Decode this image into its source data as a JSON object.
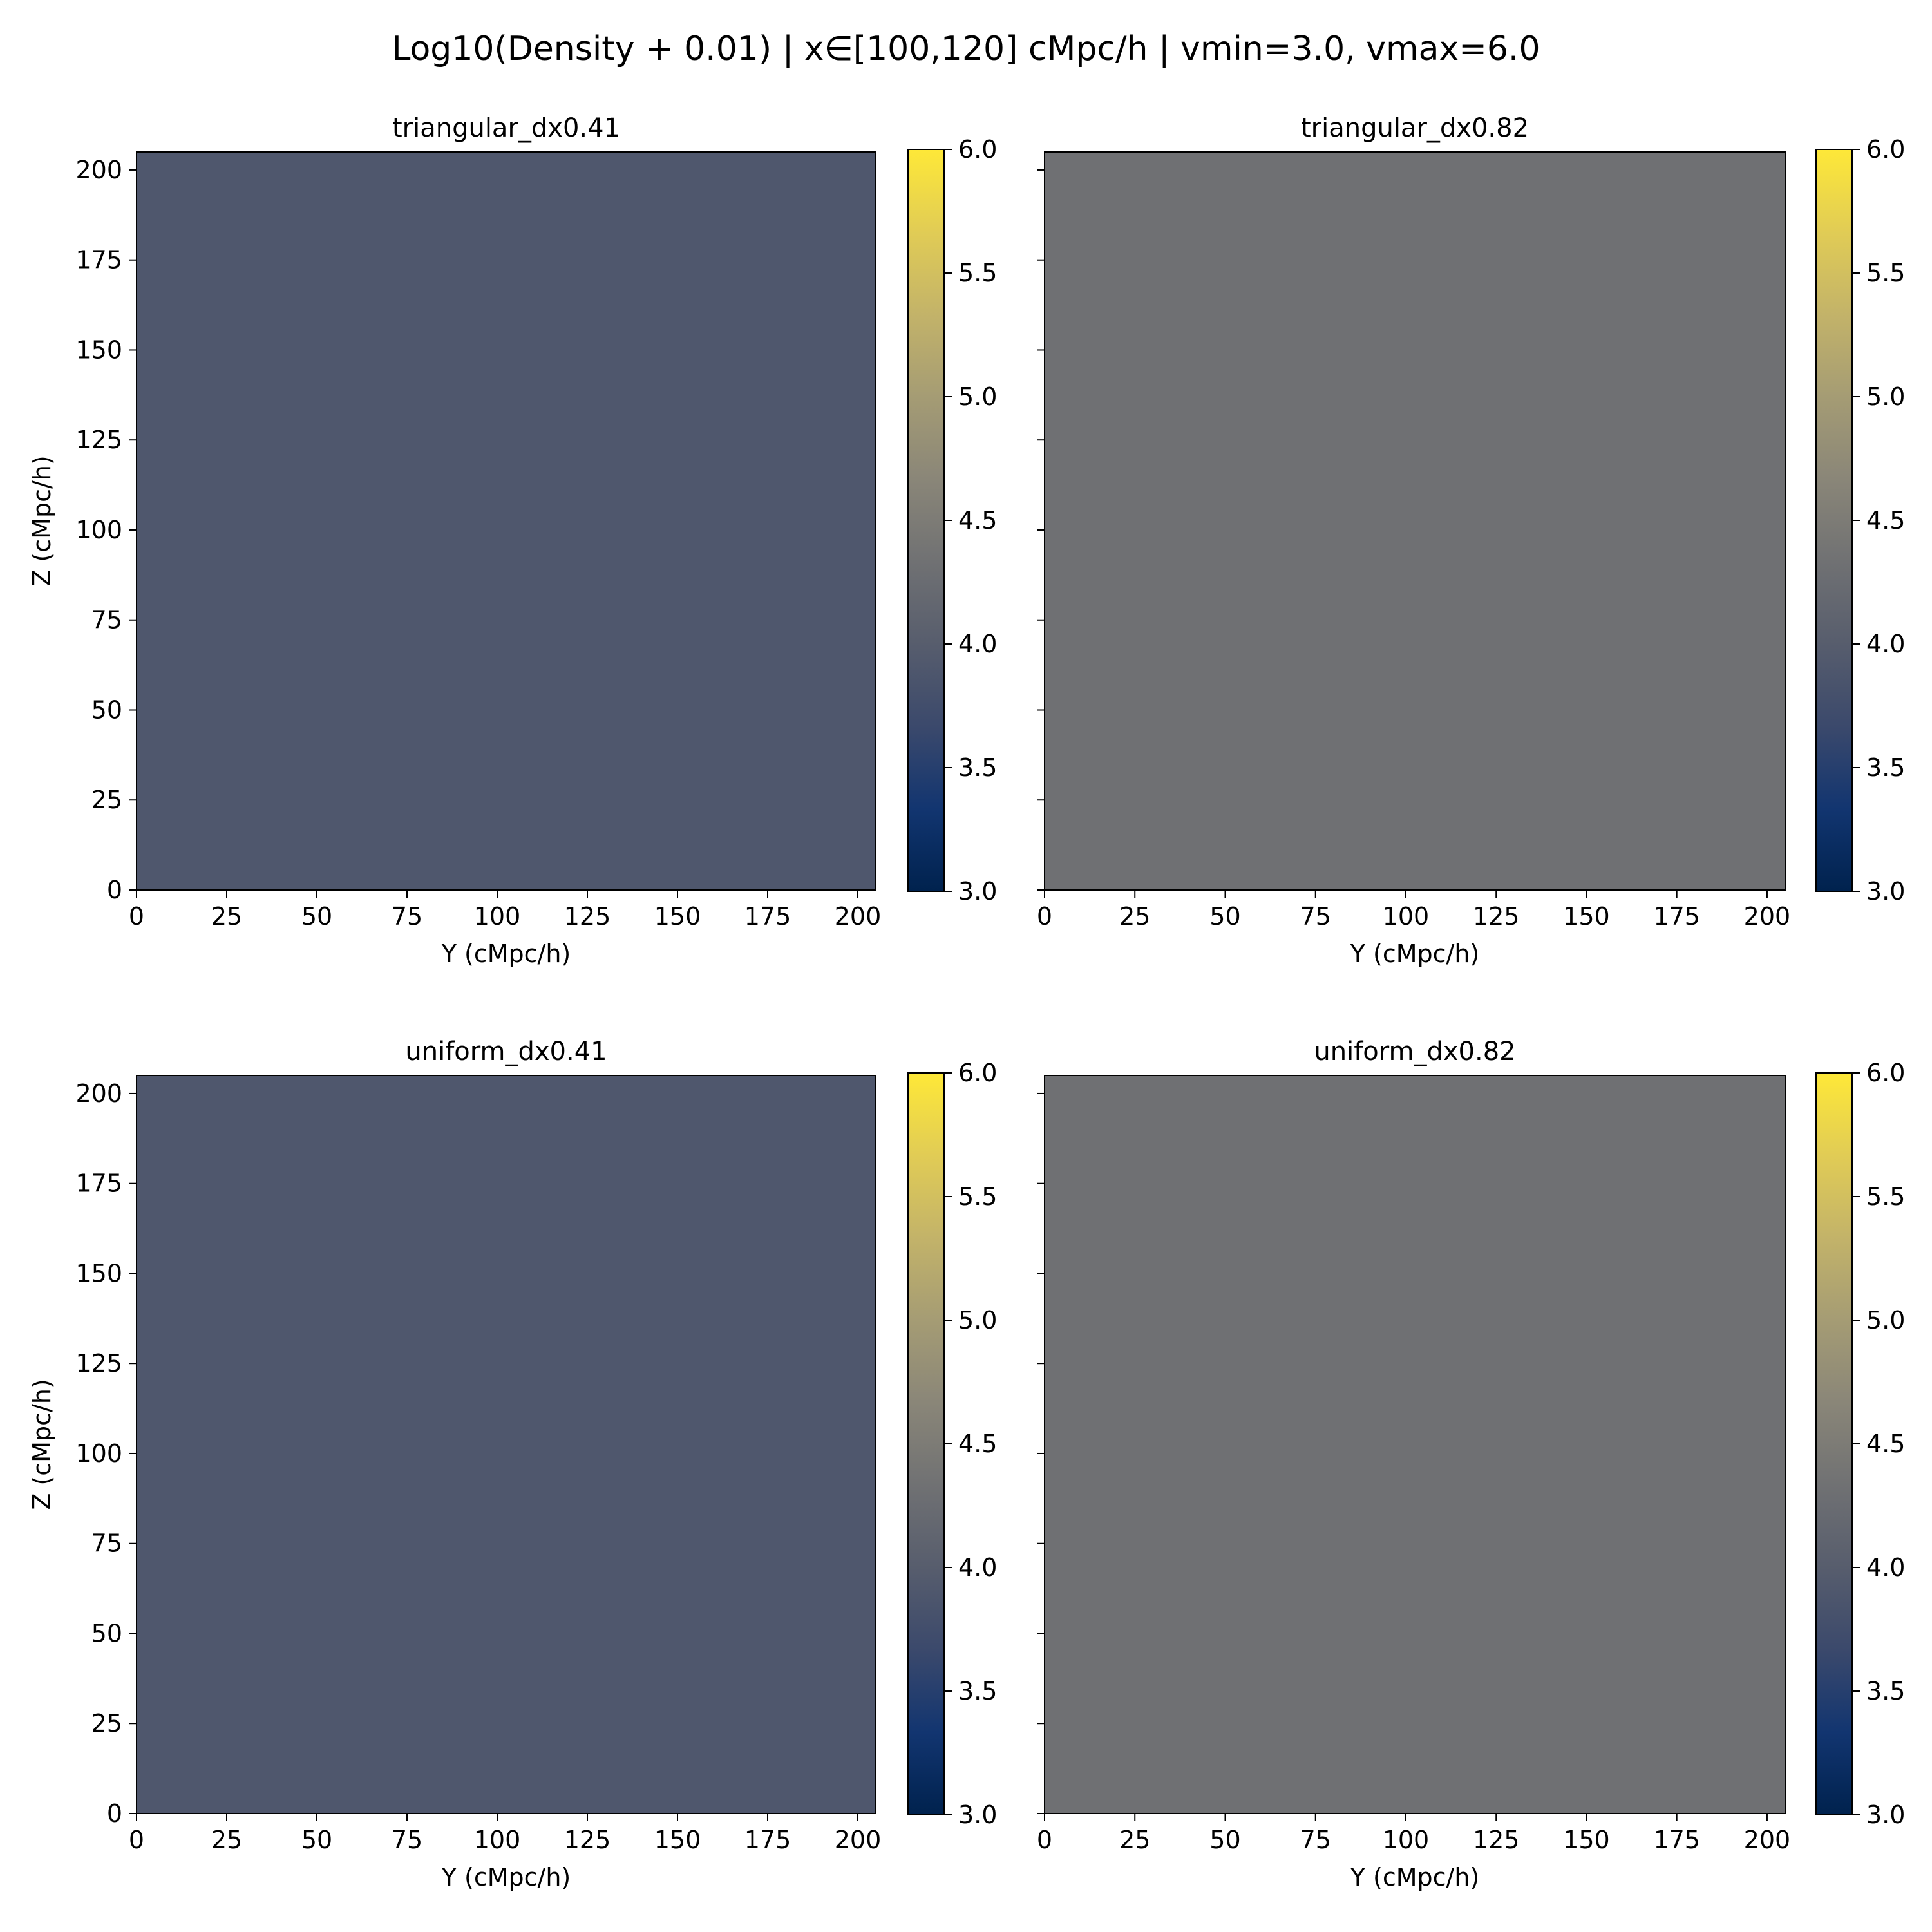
{
  "figure": {
    "suptitle": "Log10(Density + 0.01) | x∈[100,120] cMpc/h | vmin=3.0, vmax=6.0"
  },
  "colormap": {
    "name": "cividis",
    "stops": [
      "#00224e",
      "#123570",
      "#3b496c",
      "#575d6d",
      "#707173",
      "#8a8678",
      "#a59c74",
      "#c3b369",
      "#e1cc55",
      "#fee838"
    ]
  },
  "chart_data": [
    {
      "type": "heatmap",
      "title": "triangular_dx0.41",
      "xlabel": "Y (cMpc/h)",
      "ylabel": "Z (cMpc/h)",
      "xlim": [
        0,
        205
      ],
      "ylim": [
        0,
        205
      ],
      "xticks": [
        0,
        25,
        50,
        75,
        100,
        125,
        150,
        175,
        200
      ],
      "yticks": [
        0,
        25,
        50,
        75,
        100,
        125,
        150,
        175,
        200
      ],
      "value_range": [
        3.0,
        6.0
      ],
      "approx_value": 3.9,
      "colorbar_ticks": [
        "3.0",
        "3.5",
        "4.0",
        "4.5",
        "5.0",
        "5.5",
        "6.0"
      ],
      "show_ytick_labels": true
    },
    {
      "type": "heatmap",
      "title": "triangular_dx0.82",
      "xlabel": "Y (cMpc/h)",
      "ylabel": "",
      "xlim": [
        0,
        205
      ],
      "ylim": [
        0,
        205
      ],
      "xticks": [
        0,
        25,
        50,
        75,
        100,
        125,
        150,
        175,
        200
      ],
      "yticks": [
        0,
        25,
        50,
        75,
        100,
        125,
        150,
        175,
        200
      ],
      "value_range": [
        3.0,
        6.0
      ],
      "approx_value": 4.32,
      "colorbar_ticks": [
        "3.0",
        "3.5",
        "4.0",
        "4.5",
        "5.0",
        "5.5",
        "6.0"
      ],
      "show_ytick_labels": false
    },
    {
      "type": "heatmap",
      "title": "uniform_dx0.41",
      "xlabel": "Y (cMpc/h)",
      "ylabel": "Z (cMpc/h)",
      "xlim": [
        0,
        205
      ],
      "ylim": [
        0,
        205
      ],
      "xticks": [
        0,
        25,
        50,
        75,
        100,
        125,
        150,
        175,
        200
      ],
      "yticks": [
        0,
        25,
        50,
        75,
        100,
        125,
        150,
        175,
        200
      ],
      "value_range": [
        3.0,
        6.0
      ],
      "approx_value": 3.9,
      "colorbar_ticks": [
        "3.0",
        "3.5",
        "4.0",
        "4.5",
        "5.0",
        "5.5",
        "6.0"
      ],
      "show_ytick_labels": true
    },
    {
      "type": "heatmap",
      "title": "uniform_dx0.82",
      "xlabel": "Y (cMpc/h)",
      "ylabel": "",
      "xlim": [
        0,
        205
      ],
      "ylim": [
        0,
        205
      ],
      "xticks": [
        0,
        25,
        50,
        75,
        100,
        125,
        150,
        175,
        200
      ],
      "yticks": [
        0,
        25,
        50,
        75,
        100,
        125,
        150,
        175,
        200
      ],
      "value_range": [
        3.0,
        6.0
      ],
      "approx_value": 4.32,
      "colorbar_ticks": [
        "3.0",
        "3.5",
        "4.0",
        "4.5",
        "5.0",
        "5.5",
        "6.0"
      ],
      "show_ytick_labels": false
    }
  ]
}
